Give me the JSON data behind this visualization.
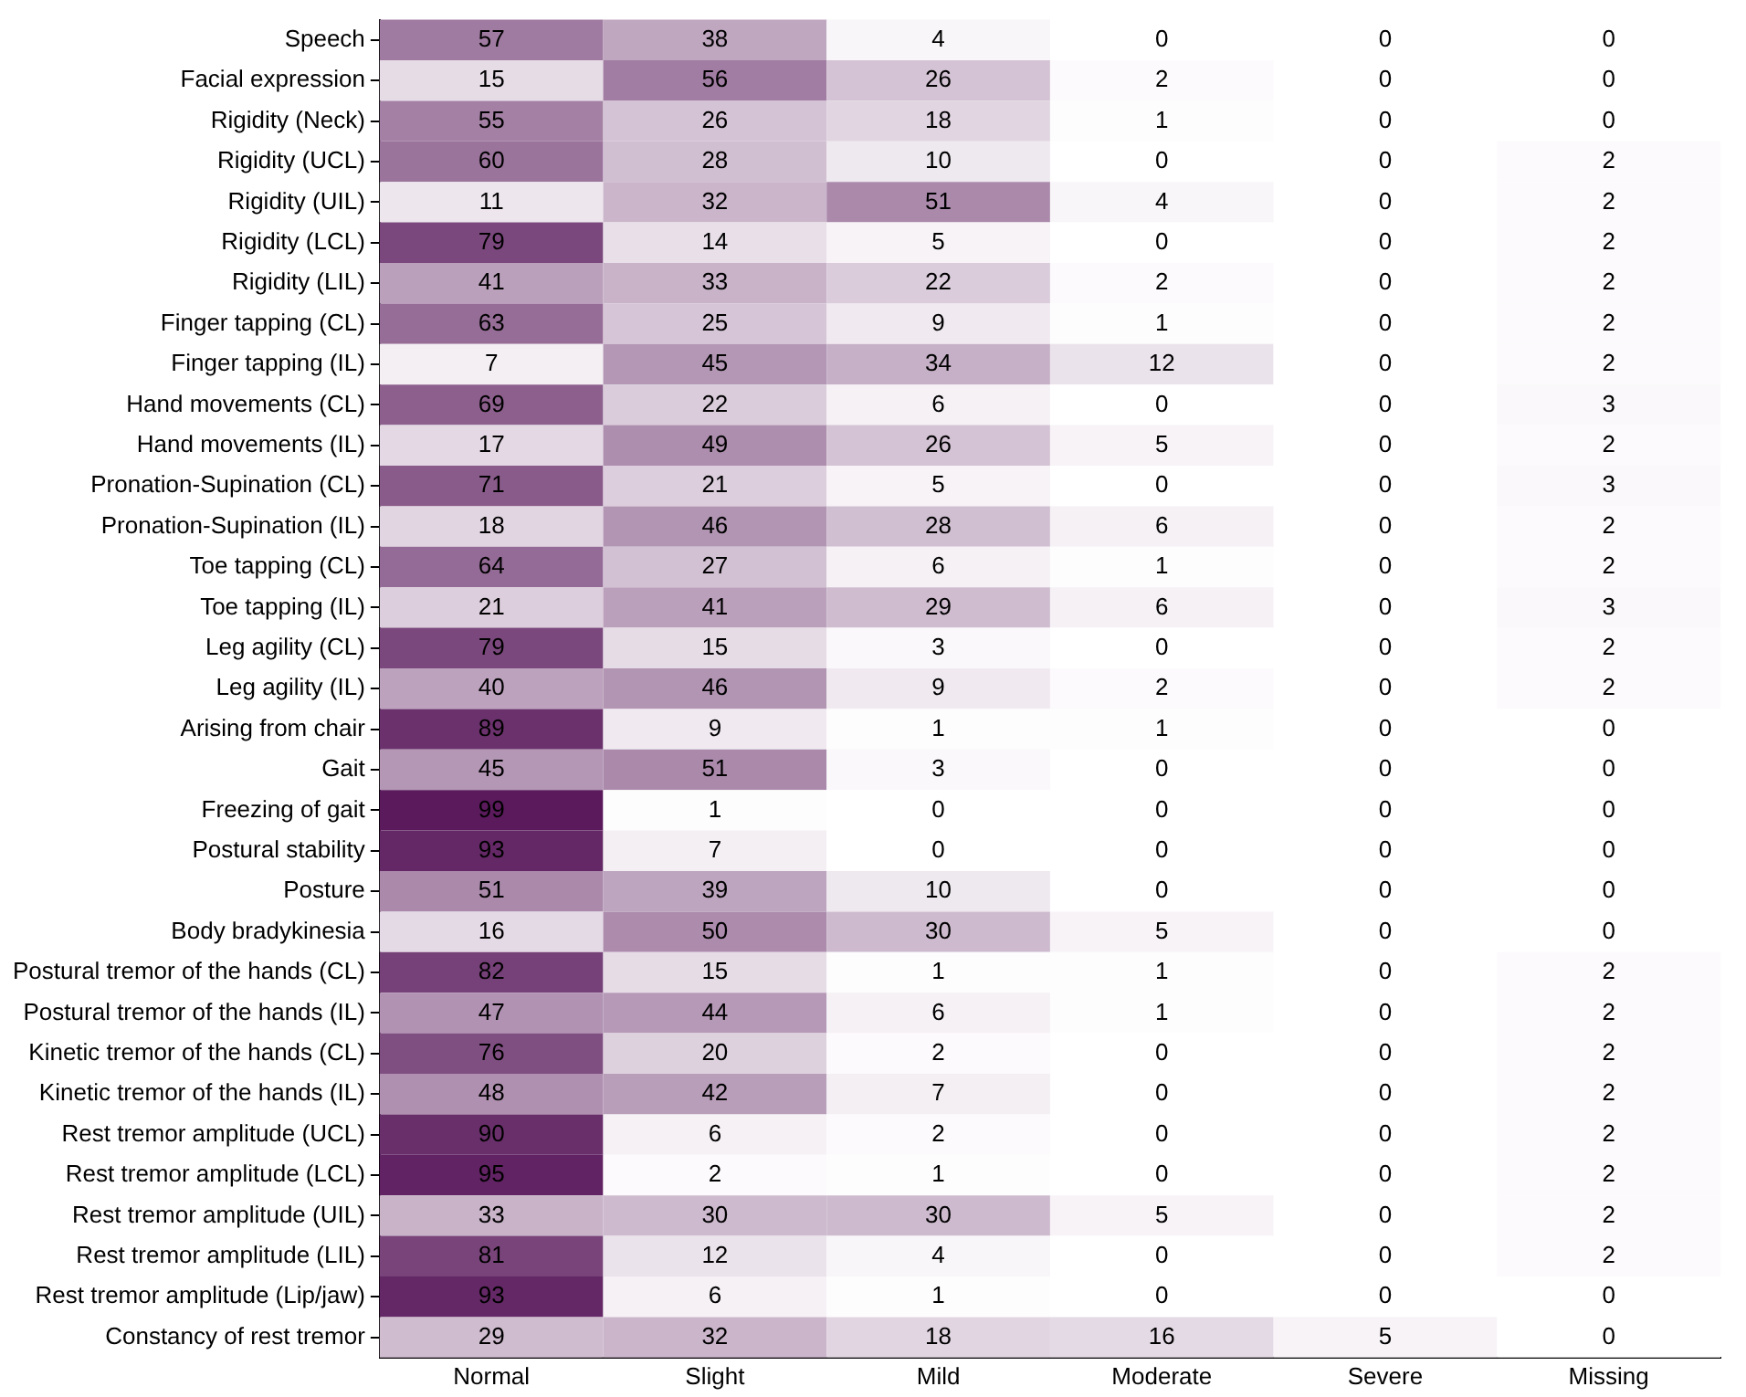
{
  "chart_data": {
    "type": "heatmap",
    "color": "#5a1a5c",
    "data_labels": true,
    "grid": false,
    "legend": false,
    "categories": [
      "Normal",
      "Slight",
      "Mild",
      "Moderate",
      "Severe",
      "Missing"
    ],
    "y_categories": [
      "Speech",
      "Facial expression",
      "Rigidity (Neck)",
      "Rigidity (UCL)",
      "Rigidity (UIL)",
      "Rigidity (LCL)",
      "Rigidity (LIL)",
      "Finger tapping (CL)",
      "Finger tapping (IL)",
      "Hand movements (CL)",
      "Hand movements (IL)",
      "Pronation-Supination (CL)",
      "Pronation-Supination (IL)",
      "Toe tapping (CL)",
      "Toe tapping (IL)",
      "Leg agility (CL)",
      "Leg agility (IL)",
      "Arising from chair",
      "Gait",
      "Freezing of gait",
      "Postural stability",
      "Posture",
      "Body bradykinesia",
      "Postural tremor of the hands (CL)",
      "Postural tremor of the hands (IL)",
      "Kinetic tremor of the hands (CL)",
      "Kinetic tremor of the hands (IL)",
      "Rest tremor amplitude (UCL)",
      "Rest tremor amplitude (LCL)",
      "Rest tremor amplitude (UIL)",
      "Rest tremor amplitude (LIL)",
      "Rest tremor amplitude (Lip/jaw)",
      "Constancy of rest tremor"
    ],
    "cells": [
      [
        57,
        38,
        4,
        0,
        0,
        0
      ],
      [
        15,
        56,
        26,
        2,
        0,
        0
      ],
      [
        55,
        26,
        18,
        1,
        0,
        0
      ],
      [
        60,
        28,
        10,
        0,
        0,
        2
      ],
      [
        11,
        32,
        51,
        4,
        0,
        2
      ],
      [
        79,
        14,
        5,
        0,
        0,
        2
      ],
      [
        41,
        33,
        22,
        2,
        0,
        2
      ],
      [
        63,
        25,
        9,
        1,
        0,
        2
      ],
      [
        7,
        45,
        34,
        12,
        0,
        2
      ],
      [
        69,
        22,
        6,
        0,
        0,
        3
      ],
      [
        17,
        49,
        26,
        5,
        0,
        2
      ],
      [
        71,
        21,
        5,
        0,
        0,
        3
      ],
      [
        18,
        46,
        28,
        6,
        0,
        2
      ],
      [
        64,
        27,
        6,
        1,
        0,
        2
      ],
      [
        21,
        41,
        29,
        6,
        0,
        3
      ],
      [
        79,
        15,
        3,
        0,
        0,
        2
      ],
      [
        40,
        46,
        9,
        2,
        0,
        2
      ],
      [
        89,
        9,
        1,
        1,
        0,
        0
      ],
      [
        45,
        51,
        3,
        0,
        0,
        0
      ],
      [
        99,
        1,
        0,
        0,
        0,
        0
      ],
      [
        93,
        7,
        0,
        0,
        0,
        0
      ],
      [
        51,
        39,
        10,
        0,
        0,
        0
      ],
      [
        16,
        50,
        30,
        5,
        0,
        0
      ],
      [
        82,
        15,
        1,
        1,
        0,
        2
      ],
      [
        47,
        44,
        6,
        1,
        0,
        2
      ],
      [
        76,
        20,
        2,
        0,
        0,
        2
      ],
      [
        48,
        42,
        7,
        0,
        0,
        2
      ],
      [
        90,
        6,
        2,
        0,
        0,
        2
      ],
      [
        95,
        2,
        1,
        0,
        0,
        2
      ],
      [
        33,
        30,
        30,
        5,
        0,
        2
      ],
      [
        81,
        12,
        4,
        0,
        0,
        2
      ],
      [
        93,
        6,
        1,
        0,
        0,
        0
      ],
      [
        29,
        32,
        18,
        16,
        5,
        0
      ]
    ]
  }
}
